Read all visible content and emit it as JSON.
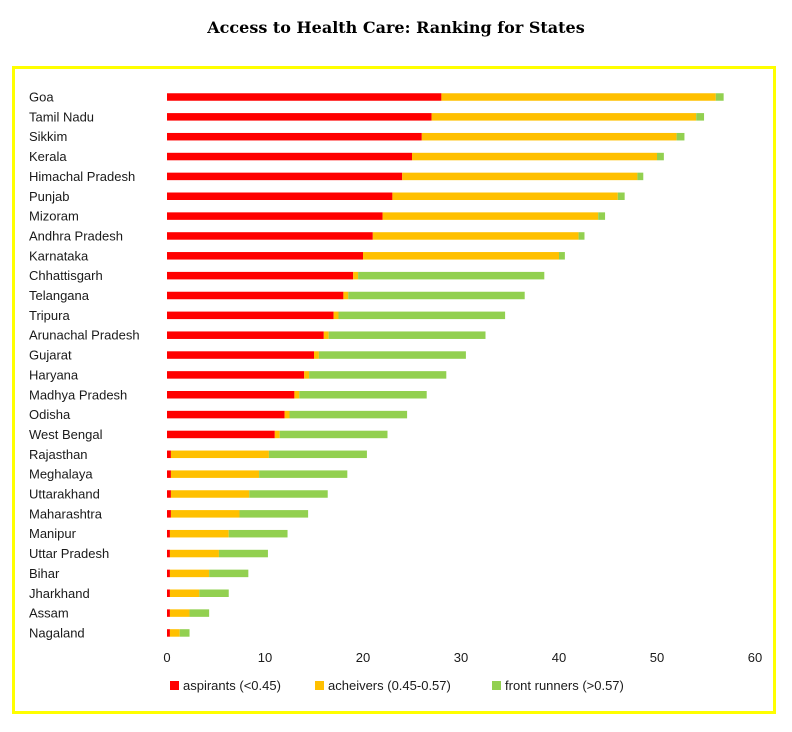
{
  "title": "Access to Health Care: Ranking for States",
  "colors": {
    "aspirants": "#ff0000",
    "achievers": "#ffc000",
    "front_runners": "#92d050",
    "frame": "#ffff00"
  },
  "chart_data": {
    "type": "bar",
    "orientation": "horizontal",
    "stacked": true,
    "categories": [
      "Goa",
      "Tamil Nadu",
      "Sikkim",
      "Kerala",
      "Himachal Pradesh",
      "Punjab",
      "Mizoram",
      "Andhra Pradesh",
      "Karnataka",
      "Chhattisgarh",
      "Telangana",
      "Tripura",
      "Arunachal Pradesh",
      "Gujarat",
      "Haryana",
      "Madhya Pradesh",
      "Odisha",
      "West Bengal",
      "Rajasthan",
      "Meghalaya",
      "Uttarakhand",
      "Maharashtra",
      "Manipur",
      "Uttar Pradesh",
      "Bihar",
      "Jharkhand",
      "Assam",
      "Nagaland"
    ],
    "series": [
      {
        "name": "aspirants (<0.45)",
        "values": [
          28,
          27,
          26,
          25,
          24,
          23,
          22,
          21,
          20,
          19,
          18,
          17,
          16,
          15,
          14,
          13,
          12,
          11,
          0.4,
          0.4,
          0.4,
          0.4,
          0.3,
          0.3,
          0.3,
          0.3,
          0.3,
          0.3
        ]
      },
      {
        "name": "acheivers (0.45-0.57)",
        "values": [
          28,
          27,
          26,
          25,
          24,
          23,
          22,
          21,
          20,
          0.5,
          0.5,
          0.5,
          0.5,
          0.5,
          0.5,
          0.5,
          0.5,
          0.5,
          10,
          9,
          8,
          7,
          6,
          5,
          4,
          3,
          2,
          1
        ]
      },
      {
        "name": "front runners (>0.57)",
        "values": [
          0.8,
          0.8,
          0.8,
          0.7,
          0.6,
          0.7,
          0.7,
          0.6,
          0.6,
          19,
          18,
          17,
          16,
          15,
          14,
          13,
          12,
          11,
          10,
          9,
          8,
          7,
          6,
          5,
          4,
          3,
          2,
          1
        ]
      }
    ],
    "xlim": [
      0,
      60
    ],
    "xticks": [
      0,
      10,
      20,
      30,
      40,
      50,
      60
    ],
    "grid": false,
    "legend_position": "bottom"
  }
}
